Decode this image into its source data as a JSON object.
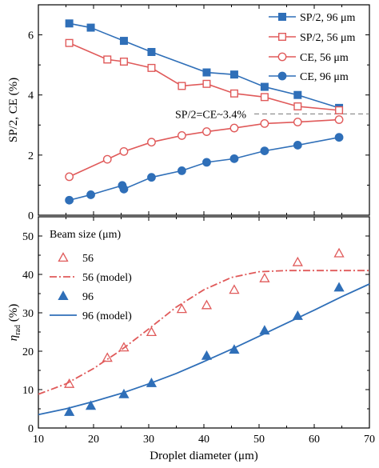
{
  "chart_data": [
    {
      "type": "line",
      "xlim": [
        10,
        70
      ],
      "ylim": [
        0,
        7
      ],
      "yticks": [
        0,
        2,
        4,
        6
      ],
      "ylabel": "SP/2, CE (%)",
      "annotation": "SP/2=CE~3.4%",
      "annotation_y": 3.37,
      "legend_position": "top-right",
      "series": [
        {
          "name": "SP/2, 96 μm",
          "color": "#2f6fb8",
          "marker": "square-filled",
          "x": [
            15.6,
            19.5,
            25.5,
            30.5,
            40.5,
            45.5,
            51,
            57,
            64.5
          ],
          "y": [
            6.38,
            6.24,
            5.8,
            5.43,
            4.75,
            4.68,
            4.27,
            4.0,
            3.57
          ]
        },
        {
          "name": "SP/2, 56 μm",
          "color": "#e05a5a",
          "marker": "square-open",
          "x": [
            15.6,
            22.5,
            25.5,
            30.5,
            36,
            40.5,
            45.5,
            51,
            57,
            64.5
          ],
          "y": [
            5.73,
            5.18,
            5.11,
            4.9,
            4.3,
            4.37,
            4.05,
            3.93,
            3.62,
            3.49
          ]
        },
        {
          "name": "CE, 56 μm",
          "color": "#e05a5a",
          "marker": "circle-open",
          "x": [
            15.6,
            22.5,
            25.5,
            30.5,
            36,
            40.5,
            45.5,
            51,
            57,
            64.5
          ],
          "y": [
            1.28,
            1.86,
            2.12,
            2.43,
            2.65,
            2.78,
            2.9,
            3.05,
            3.1,
            3.18
          ]
        },
        {
          "name": "CE, 96 μm",
          "color": "#2f6fb8",
          "marker": "circle-filled",
          "x": [
            15.6,
            19.5,
            25.2,
            25.5,
            30.5,
            36,
            40.5,
            45.5,
            51,
            57,
            64.5
          ],
          "y": [
            0.5,
            0.68,
            0.99,
            0.87,
            1.26,
            1.48,
            1.76,
            1.88,
            2.14,
            2.33,
            2.59
          ]
        }
      ]
    },
    {
      "type": "scatter",
      "xlim": [
        10,
        70
      ],
      "ylim": [
        0,
        55
      ],
      "xticks": [
        10,
        20,
        30,
        40,
        50,
        60,
        70
      ],
      "yticks": [
        0,
        10,
        20,
        30,
        40,
        50
      ],
      "xlabel": "Droplet diameter (μm)",
      "ylabel_main": "η",
      "ylabel_sub": "rad",
      "ylabel_unit": " (%)",
      "legend_title": "Beam size (μm)",
      "legend_position": "top-left",
      "series": [
        {
          "name": "56",
          "color": "#e05a5a",
          "marker": "triangle-open",
          "x": [
            15.6,
            22.5,
            25.5,
            30.5,
            36,
            40.5,
            45.5,
            51,
            57,
            64.5
          ],
          "y": [
            11.5,
            18.3,
            21.0,
            25.0,
            31.0,
            32.0,
            36.0,
            39.0,
            43.2,
            45.5
          ]
        },
        {
          "name": "56 (model)",
          "color": "#e05a5a",
          "style": "dash-dot",
          "x": [
            10,
            15,
            20,
            25,
            30,
            35,
            40,
            45,
            50,
            55,
            60,
            65,
            70
          ],
          "y": [
            8.8,
            11.5,
            15.5,
            20.3,
            25.8,
            31.5,
            36.0,
            39.2,
            40.7,
            41.0,
            41.0,
            41.0,
            41.0
          ]
        },
        {
          "name": "96",
          "color": "#2f6fb8",
          "marker": "triangle-filled",
          "x": [
            15.6,
            19.5,
            25.5,
            30.5,
            40.5,
            45.5,
            51,
            57,
            64.5
          ],
          "y": [
            4.2,
            5.8,
            8.8,
            11.7,
            18.8,
            20.4,
            25.4,
            29.2,
            36.6
          ]
        },
        {
          "name": "96 (model)",
          "color": "#2f6fb8",
          "style": "solid",
          "x": [
            10,
            15,
            20,
            25,
            30,
            35,
            40,
            45,
            50,
            55,
            60,
            65,
            70
          ],
          "y": [
            3.5,
            5.0,
            6.9,
            9.0,
            11.5,
            14.2,
            17.3,
            20.5,
            23.9,
            27.3,
            30.7,
            34.2,
            37.5
          ]
        }
      ]
    }
  ]
}
